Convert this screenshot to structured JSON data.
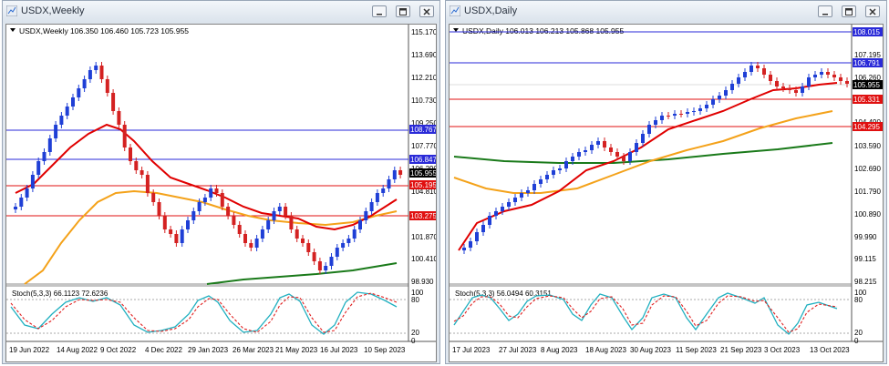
{
  "weekly": {
    "window_title": "USDX,Weekly",
    "header": "USDX,Weekly  106.350 106.460 105.723 105.955",
    "price_labels": [
      "115.170",
      "113.690",
      "112.210",
      "110.730",
      "109.250",
      "107.770",
      "106.290",
      "104.810",
      "101.870",
      "100.410",
      "98.930"
    ],
    "tag_labels": {
      "blue_upper": "108.767",
      "blue_lower": "106.847",
      "current": "105.955",
      "red_upper": "105.195",
      "red_lower": "103.275"
    },
    "stoch_header": "Stoch(5,3,3) 66.1123 72.6236",
    "stoch_labels": [
      "100",
      "80",
      "20",
      "0"
    ],
    "date_labels": [
      "19 Jun 2022",
      "14 Aug 2022",
      "9 Oct 2022",
      "4 Dec 2022",
      "29 Jan 2023",
      "26 Mar 2023",
      "21 May 2023",
      "16 Jul 2023",
      "10 Sep 2023"
    ]
  },
  "daily": {
    "window_title": "USDX,Daily",
    "header": "USDX,Daily  106.013 106.213 105.868 105.955",
    "price_labels": [
      "107.195",
      "106.260",
      "104.490",
      "103.590",
      "102.690",
      "101.790",
      "100.890",
      "99.990",
      "99.115",
      "98.215"
    ],
    "tag_labels": {
      "top": "108.015",
      "blue": "106.791",
      "current": "105.955",
      "red": "105.331",
      "red_lower": "104.295"
    },
    "stoch_header": "Stoch(5,3,3) 56.0494 60.3151",
    "stoch_labels": [
      "100",
      "80",
      "20",
      "0"
    ],
    "date_labels": [
      "17 Jul 2023",
      "27 Jul 2023",
      "8 Aug 2023",
      "18 Aug 2023",
      "30 Aug 2023",
      "11 Sep 2023",
      "21 Sep 2023",
      "3 Oct 2023",
      "13 Oct 2023"
    ]
  },
  "colors": {
    "bull": "#1f3fd6",
    "bear": "#d42121",
    "ma_red": "#e00000",
    "ma_orange": "#f4a21a",
    "ma_green": "#1a7a1a",
    "level_blue": "#2a2ad8",
    "level_red": "#e01010",
    "stoch_main": "#20b0c0",
    "stoch_signal": "#e02020"
  }
}
